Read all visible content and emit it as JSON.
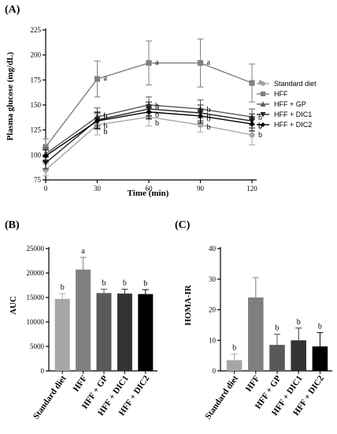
{
  "chart_data": [
    {
      "panel": "(A)",
      "type": "line",
      "xlabel": "Time (min)",
      "ylabel": "Plasma glucose (mg/dL)",
      "x": [
        0,
        30,
        60,
        90,
        120
      ],
      "xticks": [
        "0",
        "30",
        "60",
        "90",
        "120"
      ],
      "ylim": [
        75,
        225
      ],
      "yticks": [
        "75",
        "100",
        "125",
        "150",
        "175",
        "200",
        "225"
      ],
      "legend_position": "right",
      "series": [
        {
          "name": "Standard diet",
          "color": "#a6a6a6",
          "marker": "circle",
          "values": [
            85,
            130,
            138,
            130,
            120
          ],
          "errors": [
            6,
            10,
            9,
            7,
            10
          ],
          "labels": [
            "",
            "b",
            "b",
            "b",
            "b"
          ]
        },
        {
          "name": "HFF",
          "color": "#7f7f7f",
          "marker": "square",
          "values": [
            108,
            176,
            192,
            192,
            172
          ],
          "errors": [
            8,
            18,
            22,
            24,
            19
          ],
          "labels": [
            "",
            "a",
            "a",
            "a",
            "a"
          ]
        },
        {
          "name": "HFF + GP",
          "color": "#595959",
          "marker": "triangle-up",
          "values": [
            101,
            138,
            150,
            146,
            138
          ],
          "errors": [
            6,
            9,
            8,
            9,
            8
          ],
          "labels": [
            "",
            "b",
            "b",
            "b",
            "b"
          ]
        },
        {
          "name": "HFF + DIC1",
          "color": "#262626",
          "marker": "triangle-down",
          "values": [
            92,
            135,
            146,
            142,
            134
          ],
          "errors": [
            6,
            8,
            7,
            8,
            7
          ],
          "labels": [
            "",
            "b",
            "b",
            "b",
            "b"
          ]
        },
        {
          "name": "HFF + DIC2",
          "color": "#000000",
          "marker": "diamond",
          "values": [
            99,
            134,
            143,
            139,
            131
          ],
          "errors": [
            6,
            8,
            7,
            7,
            7
          ],
          "labels": [
            "",
            "b",
            "b",
            "b",
            "b"
          ]
        }
      ]
    },
    {
      "panel": "(B)",
      "type": "bar",
      "ylabel": "AUC",
      "categories": [
        "Standard diet",
        "HFF",
        "HFF + GP",
        "HFF + DIC1",
        "HFF + DIC2"
      ],
      "values": [
        14700,
        20700,
        15900,
        15800,
        15700
      ],
      "errors": [
        1100,
        2500,
        800,
        900,
        900
      ],
      "labels": [
        "b",
        "a",
        "b",
        "b",
        "b"
      ],
      "colors": [
        "#a6a6a6",
        "#7f7f7f",
        "#595959",
        "#333333",
        "#000000"
      ],
      "ylim": [
        0,
        25000
      ],
      "yticks": [
        "0",
        "5000",
        "10000",
        "15000",
        "20000",
        "25000"
      ]
    },
    {
      "panel": "(C)",
      "type": "bar",
      "ylabel": "HOMA-IR",
      "categories": [
        "Standard diet",
        "HFF",
        "HFF + GP",
        "HFF + DIC1",
        "HFF + DIC2"
      ],
      "values": [
        3.5,
        24,
        8.5,
        10,
        8
      ],
      "errors": [
        2,
        6.5,
        3.5,
        4,
        4.5
      ],
      "labels": [
        "b",
        "",
        "b",
        "b",
        "b"
      ],
      "colors": [
        "#a6a6a6",
        "#7f7f7f",
        "#595959",
        "#333333",
        "#000000"
      ],
      "ylim": [
        0,
        40
      ],
      "yticks": [
        "0",
        "10",
        "20",
        "30",
        "40"
      ]
    }
  ]
}
